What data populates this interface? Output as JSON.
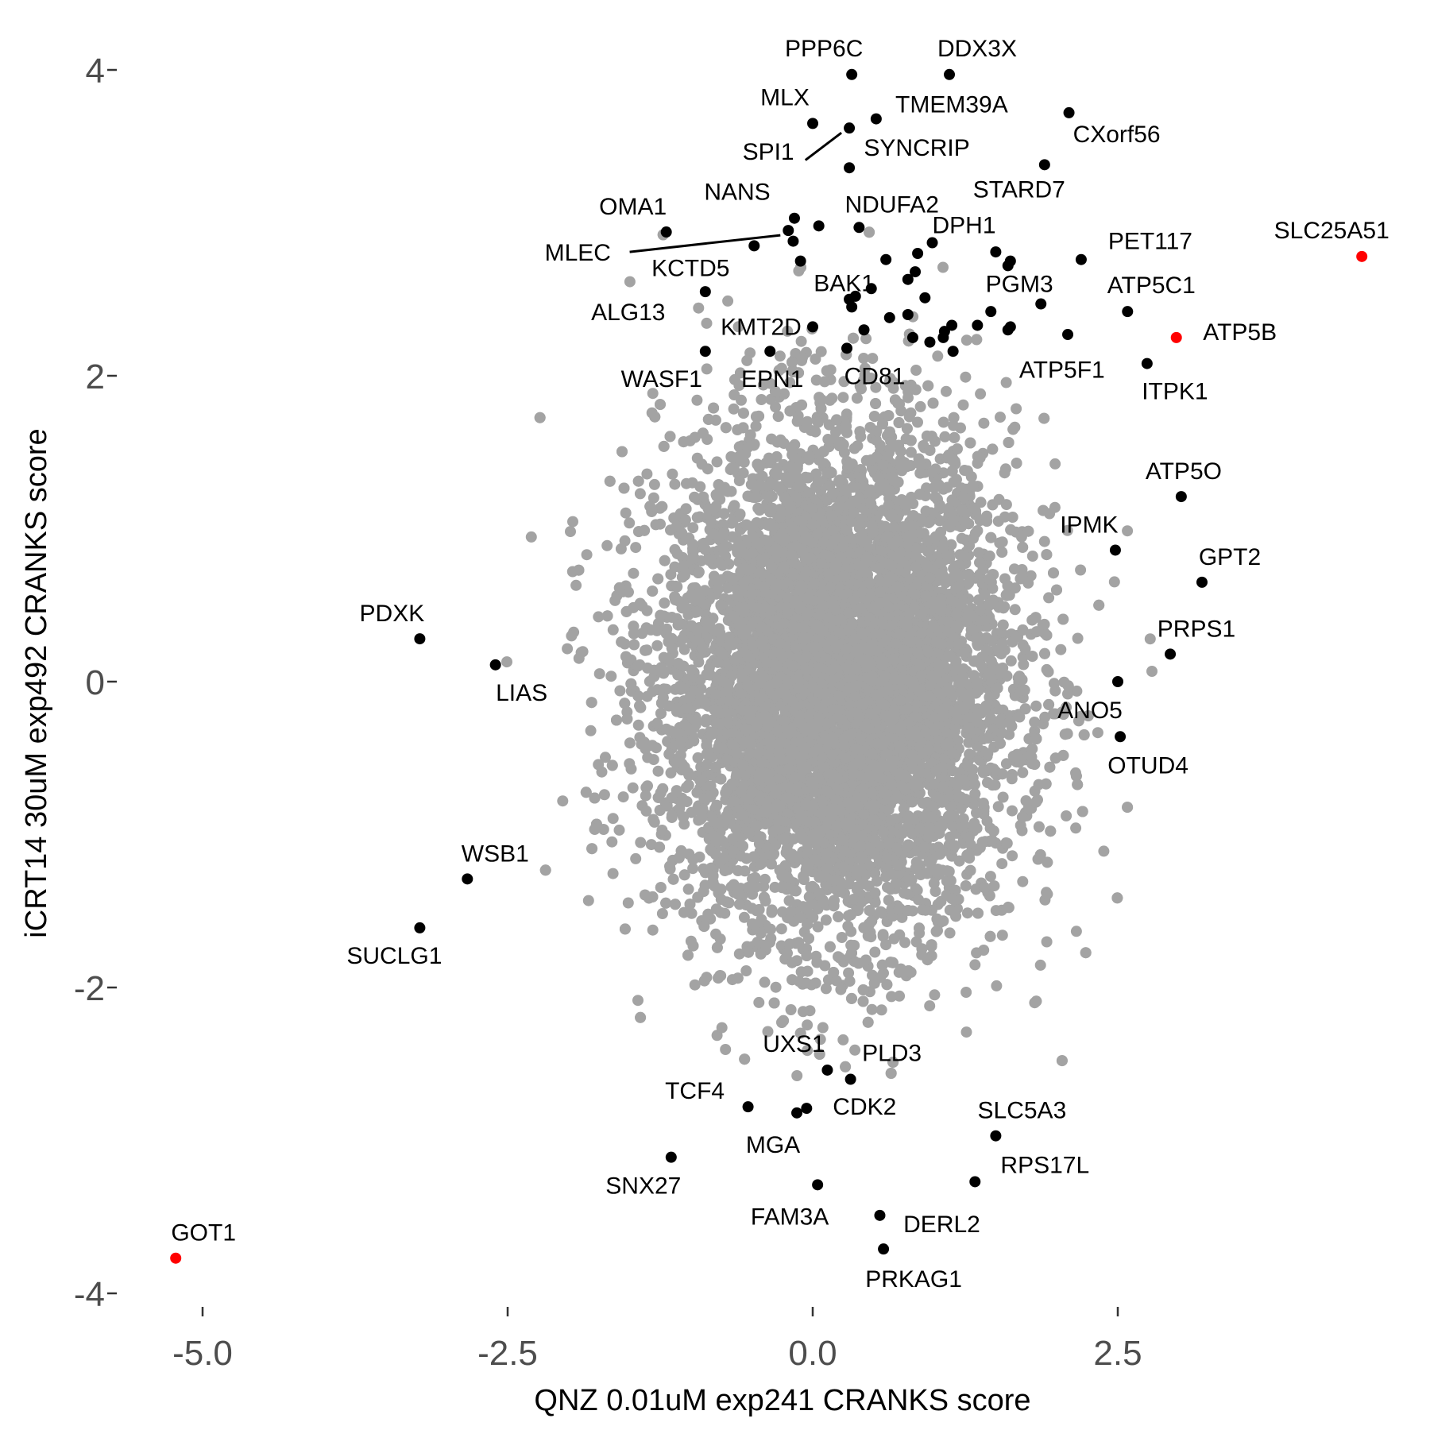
{
  "chart_data": {
    "type": "scatter",
    "xlabel": "QNZ 0.01uM exp241 CRANKS score",
    "ylabel": "iCRT14 30uM exp492 CRANKS score",
    "xlim": [
      -5.75,
      5.0
    ],
    "ylim": [
      -4.2,
      4.25
    ],
    "x_ticks": [
      -5.0,
      -2.5,
      0.0,
      2.5
    ],
    "x_tick_labels": [
      "-5.0",
      "-2.5",
      "0.0",
      "2.5"
    ],
    "y_ticks": [
      -4,
      -2,
      0,
      2,
      4
    ],
    "y_tick_labels": [
      "-4",
      "-2",
      "0",
      "2",
      "4"
    ],
    "grid": false,
    "colors": {
      "background_points": "#a3a3a3",
      "highlight": "#000000",
      "featured": "#ff0000"
    },
    "background_cloud": {
      "n": 9000,
      "x_mean": 0.2,
      "x_sd": 0.72,
      "y_mean": 0.0,
      "y_sd": 0.82
    },
    "labeled_points": [
      {
        "label": "PPP6C",
        "x": 0.32,
        "y": 3.97,
        "color": "#000000"
      },
      {
        "label": "DDX3X",
        "x": 1.12,
        "y": 3.97,
        "color": "#000000"
      },
      {
        "label": "MLX",
        "x": 0.0,
        "y": 3.65,
        "color": "#000000"
      },
      {
        "label": "TMEM39A",
        "x": 0.52,
        "y": 3.68,
        "color": "#000000"
      },
      {
        "label": "SPI1",
        "x": 0.3,
        "y": 3.62,
        "color": "#000000"
      },
      {
        "label": "SYNCRIP",
        "x": 0.3,
        "y": 3.36,
        "color": "#000000"
      },
      {
        "label": "CXorf56",
        "x": 2.1,
        "y": 3.72,
        "color": "#000000"
      },
      {
        "label": "STARD7",
        "x": 1.9,
        "y": 3.38,
        "color": "#000000"
      },
      {
        "label": "OMA1",
        "x": -1.2,
        "y": 2.94,
        "color": "#000000"
      },
      {
        "label": "NANS",
        "x": -0.15,
        "y": 3.03,
        "color": "#000000"
      },
      {
        "label": "NDUFA2",
        "x": 0.05,
        "y": 2.98,
        "color": "#000000"
      },
      {
        "label": "MLEC",
        "x": -0.2,
        "y": 2.95,
        "color": "#000000"
      },
      {
        "label": "DPH1",
        "x": 0.98,
        "y": 2.87,
        "color": "#000000"
      },
      {
        "label": "KCTD5",
        "x": -0.48,
        "y": 2.85,
        "color": "#000000"
      },
      {
        "label": "BAK1",
        "x": -0.1,
        "y": 2.75,
        "color": "#000000"
      },
      {
        "label": "PET117",
        "x": 2.2,
        "y": 2.76,
        "color": "#000000"
      },
      {
        "label": "SLC25A51",
        "x": 4.5,
        "y": 2.78,
        "color": "#ff0000"
      },
      {
        "label": "ALG13",
        "x": -0.88,
        "y": 2.55,
        "color": "#000000"
      },
      {
        "label": "PGM3",
        "x": 1.87,
        "y": 2.47,
        "color": "#000000"
      },
      {
        "label": "ATP5C1",
        "x": 2.58,
        "y": 2.42,
        "color": "#000000"
      },
      {
        "label": "KMT2D",
        "x": 0.0,
        "y": 2.32,
        "color": "#000000"
      },
      {
        "label": "ATP5B",
        "x": 2.98,
        "y": 2.25,
        "color": "#ff0000"
      },
      {
        "label": "WASF1",
        "x": -0.88,
        "y": 2.16,
        "color": "#000000"
      },
      {
        "label": "EPN1",
        "x": -0.35,
        "y": 2.16,
        "color": "#000000"
      },
      {
        "label": "CD81",
        "x": 0.28,
        "y": 2.18,
        "color": "#000000"
      },
      {
        "label": "ATP5F1",
        "x": 1.6,
        "y": 2.3,
        "color": "#000000"
      },
      {
        "label": "ITPK1",
        "x": 2.74,
        "y": 2.08,
        "color": "#000000"
      },
      {
        "label": "ATP5O",
        "x": 3.02,
        "y": 1.21,
        "color": "#000000"
      },
      {
        "label": "IPMK",
        "x": 2.48,
        "y": 0.86,
        "color": "#000000"
      },
      {
        "label": "GPT2",
        "x": 3.19,
        "y": 0.65,
        "color": "#000000"
      },
      {
        "label": "PDXK",
        "x": -3.22,
        "y": 0.28,
        "color": "#000000"
      },
      {
        "label": "PRPS1",
        "x": 2.93,
        "y": 0.18,
        "color": "#000000"
      },
      {
        "label": "LIAS",
        "x": -2.6,
        "y": 0.11,
        "color": "#000000"
      },
      {
        "label": "ANO5",
        "x": 2.5,
        "y": 0.0,
        "color": "#000000"
      },
      {
        "label": "OTUD4",
        "x": 2.52,
        "y": -0.36,
        "color": "#000000"
      },
      {
        "label": "WSB1",
        "x": -2.83,
        "y": -1.29,
        "color": "#000000"
      },
      {
        "label": "SUCLG1",
        "x": -3.22,
        "y": -1.61,
        "color": "#000000"
      },
      {
        "label": "UXS1",
        "x": 0.12,
        "y": -2.54,
        "color": "#000000"
      },
      {
        "label": "PLD3",
        "x": 0.31,
        "y": -2.6,
        "color": "#000000"
      },
      {
        "label": "TCF4",
        "x": -0.53,
        "y": -2.78,
        "color": "#000000"
      },
      {
        "label": "CDK2",
        "x": -0.05,
        "y": -2.79,
        "color": "#000000"
      },
      {
        "label": "MGA",
        "x": -0.13,
        "y": -2.82,
        "color": "#000000"
      },
      {
        "label": "SLC5A3",
        "x": 1.5,
        "y": -2.97,
        "color": "#000000"
      },
      {
        "label": "SNX27",
        "x": -1.16,
        "y": -3.11,
        "color": "#000000"
      },
      {
        "label": "RPS17L",
        "x": 1.33,
        "y": -3.27,
        "color": "#000000"
      },
      {
        "label": "FAM3A",
        "x": 0.04,
        "y": -3.29,
        "color": "#000000"
      },
      {
        "label": "DERL2",
        "x": 0.55,
        "y": -3.49,
        "color": "#000000"
      },
      {
        "label": "PRKAG1",
        "x": 0.58,
        "y": -3.71,
        "color": "#000000"
      },
      {
        "label": "GOT1",
        "x": -5.22,
        "y": -3.77,
        "color": "#ff0000"
      }
    ],
    "unlabeled_highlight_points": [
      {
        "x": -0.16,
        "y": 2.88
      },
      {
        "x": 0.38,
        "y": 2.97
      },
      {
        "x": 0.6,
        "y": 2.76
      },
      {
        "x": 0.86,
        "y": 2.8
      },
      {
        "x": 0.78,
        "y": 2.63
      },
      {
        "x": 0.84,
        "y": 2.68
      },
      {
        "x": 0.92,
        "y": 2.51
      },
      {
        "x": 0.48,
        "y": 2.57
      },
      {
        "x": 0.3,
        "y": 2.5
      },
      {
        "x": 0.35,
        "y": 2.52
      },
      {
        "x": 0.32,
        "y": 2.45
      },
      {
        "x": 0.42,
        "y": 2.3
      },
      {
        "x": 0.63,
        "y": 2.38
      },
      {
        "x": 0.78,
        "y": 2.4
      },
      {
        "x": 0.82,
        "y": 2.25
      },
      {
        "x": 0.96,
        "y": 2.22
      },
      {
        "x": 1.07,
        "y": 2.25
      },
      {
        "x": 1.14,
        "y": 2.33
      },
      {
        "x": 1.15,
        "y": 2.16
      },
      {
        "x": 1.35,
        "y": 2.33
      },
      {
        "x": 1.46,
        "y": 2.42
      },
      {
        "x": 1.62,
        "y": 2.32
      },
      {
        "x": 1.62,
        "y": 2.75
      },
      {
        "x": 1.5,
        "y": 2.81
      },
      {
        "x": 1.6,
        "y": 2.72
      },
      {
        "x": 2.09,
        "y": 2.27
      },
      {
        "x": 1.08,
        "y": 2.29
      }
    ]
  }
}
